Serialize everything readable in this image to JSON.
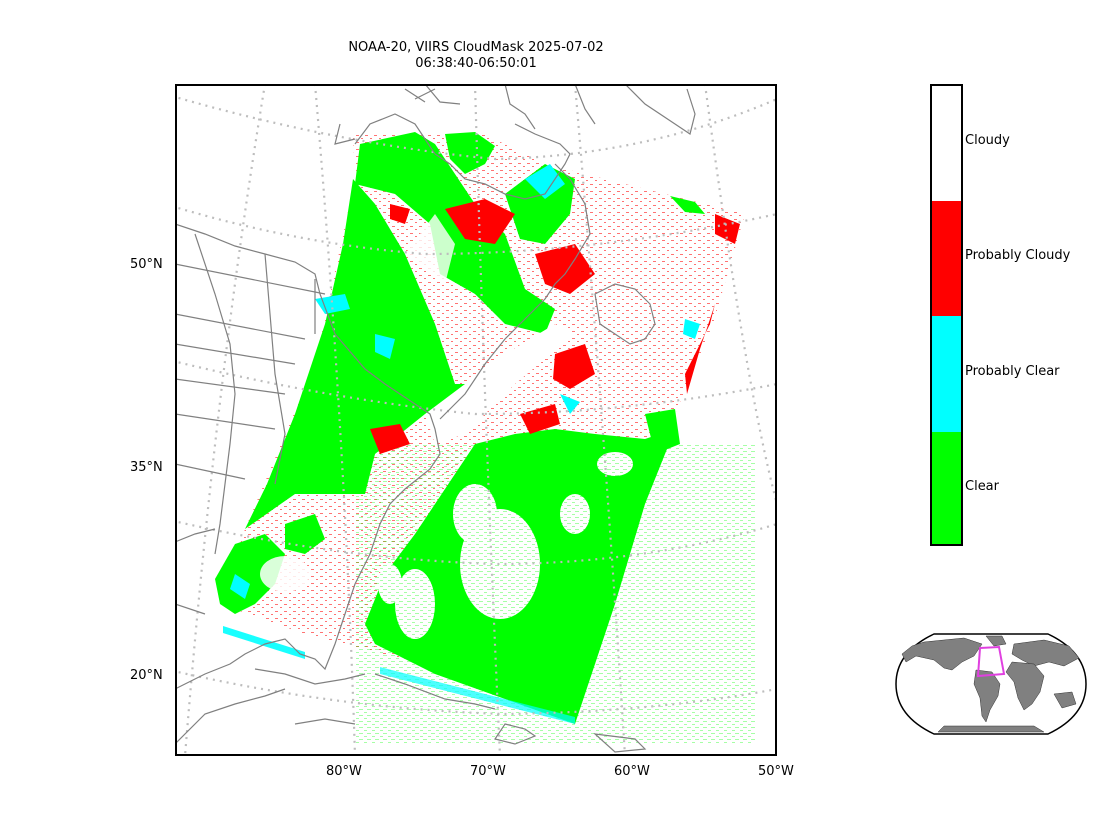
{
  "title": "NOAA-20, VIIRS CloudMask 2025-07-02\n06:38:40-06:50:01",
  "lat_labels": [
    "50°N",
    "35°N",
    "20°N"
  ],
  "lon_labels": [
    "80°W",
    "70°W",
    "60°W",
    "50°W"
  ],
  "colorbar": {
    "classes": [
      {
        "label": "Cloudy",
        "color": "#ffffff"
      },
      {
        "label": "Probably Cloudy",
        "color": "#ff0000"
      },
      {
        "label": "Probably Clear",
        "color": "#00ffff"
      },
      {
        "label": "Clear",
        "color": "#00ff00"
      }
    ]
  },
  "colors": {
    "coastline": "#808080",
    "gridline": "#bdbdbd",
    "land_inset": "#808080",
    "swath_box": "#e040e0"
  }
}
